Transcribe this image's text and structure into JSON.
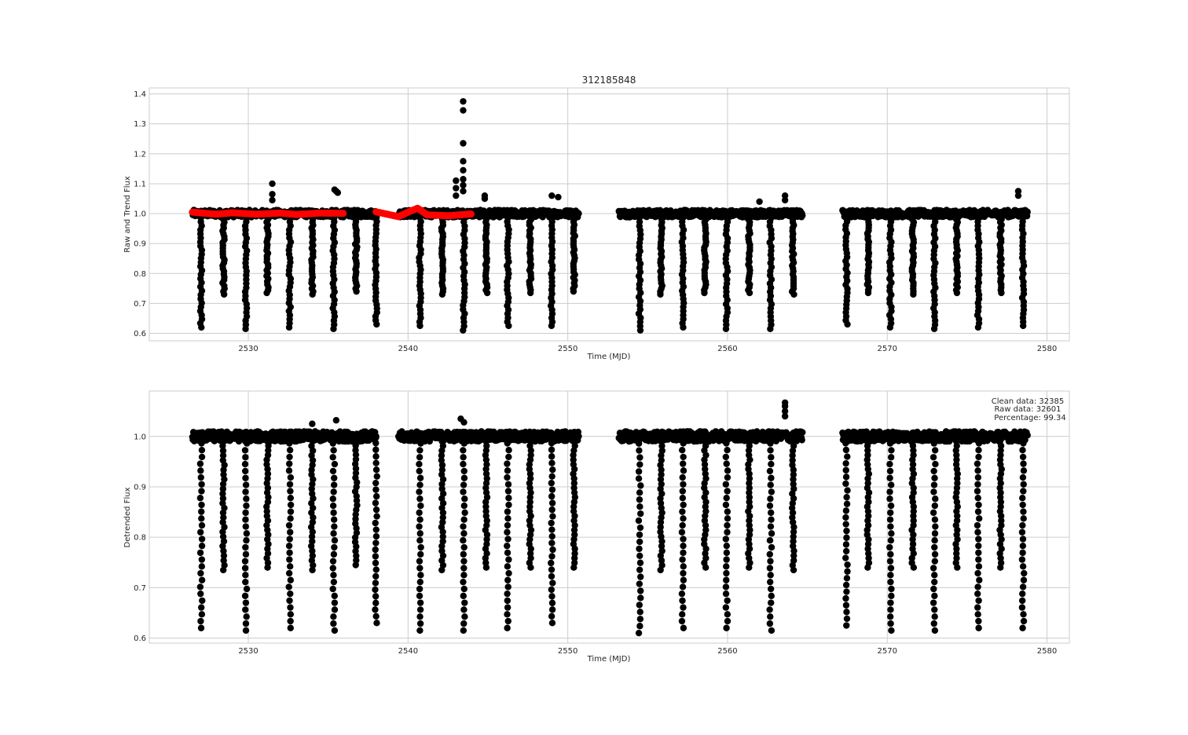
{
  "figure": {
    "title": "312185848",
    "annotation": [
      "Clean data: 32385",
      "Raw data: 32601",
      "Percentage: 99.34"
    ]
  },
  "colors": {
    "points": "#000000",
    "trend": "#ff0000",
    "grid": "#cccccc",
    "spine": "#cccccc"
  },
  "chart_data": [
    {
      "type": "scatter",
      "title": "312185848",
      "xlabel": "Time (MJD)",
      "ylabel": "Raw and Trend Flux",
      "xlim": [
        2523.8,
        2581.4
      ],
      "ylim": [
        0.575,
        1.42
      ],
      "xticks": [
        2530,
        2540,
        2550,
        2560,
        2570,
        2580
      ],
      "yticks": [
        0.6,
        0.7,
        0.8,
        0.9,
        1.0,
        1.1,
        1.2,
        1.3,
        1.4
      ],
      "grid": true,
      "segments": [
        [
          2526.5,
          2538.0
        ],
        [
          2539.4,
          2550.7
        ],
        [
          2553.2,
          2564.7
        ],
        [
          2567.2,
          2578.8
        ]
      ],
      "transits": [
        {
          "t": 2527.05,
          "depth": 0.62
        },
        {
          "t": 2528.45,
          "depth": 0.73
        },
        {
          "t": 2529.85,
          "depth": 0.615
        },
        {
          "t": 2531.2,
          "depth": 0.735
        },
        {
          "t": 2532.6,
          "depth": 0.62
        },
        {
          "t": 2534.0,
          "depth": 0.73
        },
        {
          "t": 2535.35,
          "depth": 0.615
        },
        {
          "t": 2536.75,
          "depth": 0.74
        },
        {
          "t": 2538.0,
          "depth": 0.63
        },
        {
          "t": 2540.75,
          "depth": 0.625
        },
        {
          "t": 2542.15,
          "depth": 0.73
        },
        {
          "t": 2543.5,
          "depth": 0.61
        },
        {
          "t": 2544.9,
          "depth": 0.735
        },
        {
          "t": 2546.25,
          "depth": 0.625
        },
        {
          "t": 2547.65,
          "depth": 0.735
        },
        {
          "t": 2549.0,
          "depth": 0.625
        },
        {
          "t": 2550.4,
          "depth": 0.74
        },
        {
          "t": 2554.5,
          "depth": 0.61
        },
        {
          "t": 2555.85,
          "depth": 0.73
        },
        {
          "t": 2557.2,
          "depth": 0.62
        },
        {
          "t": 2558.6,
          "depth": 0.735
        },
        {
          "t": 2559.95,
          "depth": 0.615
        },
        {
          "t": 2561.35,
          "depth": 0.735
        },
        {
          "t": 2562.7,
          "depth": 0.615
        },
        {
          "t": 2564.1,
          "depth": 0.73
        },
        {
          "t": 2567.45,
          "depth": 0.63
        },
        {
          "t": 2568.8,
          "depth": 0.735
        },
        {
          "t": 2570.2,
          "depth": 0.62
        },
        {
          "t": 2571.6,
          "depth": 0.73
        },
        {
          "t": 2572.95,
          "depth": 0.615
        },
        {
          "t": 2574.35,
          "depth": 0.735
        },
        {
          "t": 2575.7,
          "depth": 0.62
        },
        {
          "t": 2577.1,
          "depth": 0.735
        },
        {
          "t": 2578.5,
          "depth": 0.625
        }
      ],
      "outliers": [
        {
          "t": 2531.5,
          "y": 1.1
        },
        {
          "t": 2531.5,
          "y": 1.065
        },
        {
          "t": 2531.5,
          "y": 1.045
        },
        {
          "t": 2535.4,
          "y": 1.08
        },
        {
          "t": 2535.5,
          "y": 1.075
        },
        {
          "t": 2535.6,
          "y": 1.07
        },
        {
          "t": 2543.0,
          "y": 1.11
        },
        {
          "t": 2543.0,
          "y": 1.085
        },
        {
          "t": 2543.0,
          "y": 1.06
        },
        {
          "t": 2543.45,
          "y": 1.375
        },
        {
          "t": 2543.45,
          "y": 1.345
        },
        {
          "t": 2543.45,
          "y": 1.235
        },
        {
          "t": 2543.45,
          "y": 1.175
        },
        {
          "t": 2543.45,
          "y": 1.145
        },
        {
          "t": 2543.45,
          "y": 1.115
        },
        {
          "t": 2543.45,
          "y": 1.095
        },
        {
          "t": 2543.45,
          "y": 1.075
        },
        {
          "t": 2544.8,
          "y": 1.06
        },
        {
          "t": 2544.8,
          "y": 1.05
        },
        {
          "t": 2549.0,
          "y": 1.06
        },
        {
          "t": 2549.4,
          "y": 1.055
        },
        {
          "t": 2563.6,
          "y": 1.06
        },
        {
          "t": 2563.6,
          "y": 1.045
        },
        {
          "t": 2562.0,
          "y": 1.04
        },
        {
          "t": 2578.2,
          "y": 1.075
        },
        {
          "t": 2578.2,
          "y": 1.06
        }
      ],
      "trend": [
        [
          2526.5,
          1.005
        ],
        [
          2528.0,
          0.998
        ],
        [
          2529.0,
          1.003
        ],
        [
          2530.5,
          0.998
        ],
        [
          2532.0,
          1.002
        ],
        [
          2533.0,
          0.997
        ],
        [
          2534.5,
          1.002
        ],
        [
          2536.0,
          1.001
        ],
        [
          2538.0,
          1.006
        ],
        [
          2539.4,
          0.99
        ],
        [
          2540.0,
          1.005
        ],
        [
          2540.6,
          1.018
        ],
        [
          2541.2,
          0.996
        ],
        [
          2542.5,
          0.993
        ],
        [
          2544.0,
          0.999
        ],
        [
          2546.0,
          0.997
        ],
        [
          2548.0,
          1.002
        ],
        [
          2550.7,
          1.0
        ],
        [
          2553.2,
          0.998
        ],
        [
          2555.0,
          1.002
        ],
        [
          2557.0,
          0.997
        ],
        [
          2559.0,
          1.002
        ],
        [
          2561.0,
          0.999
        ],
        [
          2563.0,
          0.997
        ],
        [
          2564.7,
          0.998
        ],
        [
          2567.2,
          0.998
        ],
        [
          2569.0,
          1.005
        ],
        [
          2571.0,
          1.0
        ],
        [
          2573.0,
          1.005
        ],
        [
          2575.0,
          0.997
        ],
        [
          2577.0,
          1.003
        ],
        [
          2578.8,
          1.005
        ]
      ]
    },
    {
      "type": "scatter",
      "xlabel": "Time (MJD)",
      "ylabel": "Detrended Flux",
      "xlim": [
        2523.8,
        2581.4
      ],
      "ylim": [
        0.59,
        1.09
      ],
      "xticks": [
        2530,
        2540,
        2550,
        2560,
        2570,
        2580
      ],
      "yticks": [
        0.6,
        0.7,
        0.8,
        0.9,
        1.0
      ],
      "grid": true,
      "segments": [
        [
          2526.5,
          2538.0
        ],
        [
          2539.4,
          2550.7
        ],
        [
          2553.2,
          2564.7
        ],
        [
          2567.2,
          2578.8
        ]
      ],
      "transits": [
        {
          "t": 2527.05,
          "depth": 0.62
        },
        {
          "t": 2528.45,
          "depth": 0.735
        },
        {
          "t": 2529.85,
          "depth": 0.615
        },
        {
          "t": 2531.2,
          "depth": 0.74
        },
        {
          "t": 2532.6,
          "depth": 0.62
        },
        {
          "t": 2534.0,
          "depth": 0.735
        },
        {
          "t": 2535.35,
          "depth": 0.615
        },
        {
          "t": 2536.75,
          "depth": 0.745
        },
        {
          "t": 2538.0,
          "depth": 0.63
        },
        {
          "t": 2540.75,
          "depth": 0.615
        },
        {
          "t": 2542.15,
          "depth": 0.735
        },
        {
          "t": 2543.5,
          "depth": 0.615
        },
        {
          "t": 2544.9,
          "depth": 0.74
        },
        {
          "t": 2546.25,
          "depth": 0.62
        },
        {
          "t": 2547.65,
          "depth": 0.74
        },
        {
          "t": 2549.0,
          "depth": 0.63
        },
        {
          "t": 2550.4,
          "depth": 0.74
        },
        {
          "t": 2554.5,
          "depth": 0.61
        },
        {
          "t": 2555.85,
          "depth": 0.735
        },
        {
          "t": 2557.2,
          "depth": 0.62
        },
        {
          "t": 2558.6,
          "depth": 0.74
        },
        {
          "t": 2559.95,
          "depth": 0.62
        },
        {
          "t": 2561.35,
          "depth": 0.74
        },
        {
          "t": 2562.7,
          "depth": 0.615
        },
        {
          "t": 2564.1,
          "depth": 0.735
        },
        {
          "t": 2567.45,
          "depth": 0.625
        },
        {
          "t": 2568.8,
          "depth": 0.74
        },
        {
          "t": 2570.2,
          "depth": 0.615
        },
        {
          "t": 2571.6,
          "depth": 0.74
        },
        {
          "t": 2572.95,
          "depth": 0.615
        },
        {
          "t": 2574.35,
          "depth": 0.74
        },
        {
          "t": 2575.7,
          "depth": 0.62
        },
        {
          "t": 2577.1,
          "depth": 0.74
        },
        {
          "t": 2578.5,
          "depth": 0.62
        }
      ],
      "outliers": [
        {
          "t": 2534.0,
          "y": 1.025
        },
        {
          "t": 2535.5,
          "y": 1.032
        },
        {
          "t": 2543.3,
          "y": 1.035
        },
        {
          "t": 2543.5,
          "y": 1.028
        },
        {
          "t": 2563.6,
          "y": 1.067
        },
        {
          "t": 2563.6,
          "y": 1.06
        },
        {
          "t": 2563.6,
          "y": 1.05
        },
        {
          "t": 2563.6,
          "y": 1.04
        }
      ]
    }
  ]
}
